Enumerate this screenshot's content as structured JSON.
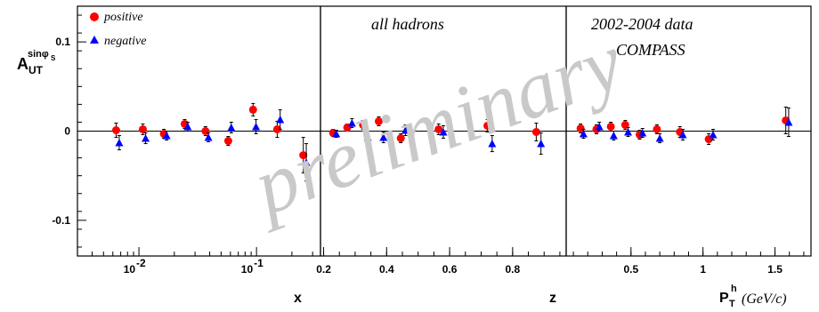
{
  "chart_data": {
    "type": "scatter",
    "y_axis": {
      "label_main": "A",
      "label_sub": "UT",
      "label_sup": "sinφ",
      "label_sup_sub": "S",
      "ylim": [
        -0.14,
        0.14
      ],
      "ticks": [
        -0.1,
        0,
        0.1
      ],
      "tick_labels": [
        "-0.1",
        "0",
        "0.1"
      ]
    },
    "legend": {
      "placement": "top-left",
      "entries": [
        {
          "name": "positive",
          "color": "#ff0000",
          "marker": "circle"
        },
        {
          "name": "negative",
          "color": "#0000ff",
          "marker": "triangle"
        }
      ]
    },
    "annotations": {
      "panel2": "all hadrons",
      "panel3_line1": "2002-2004 data",
      "panel3_line2": "COMPASS",
      "watermark": "preliminary"
    },
    "panels": [
      {
        "xlabel": "x",
        "xscale": "log",
        "xlim": [
          0.003,
          0.35
        ],
        "ticks": [
          {
            "value": 0.01,
            "base": "10",
            "exp": "-2"
          },
          {
            "value": 0.1,
            "base": "10",
            "exp": "-1"
          }
        ],
        "series": [
          {
            "name": "positive",
            "points": [
              {
                "x": 0.0064,
                "y": 0.001,
                "err": 0.008
              },
              {
                "x": 0.0108,
                "y": 0.002,
                "err": 0.006
              },
              {
                "x": 0.0163,
                "y": -0.003,
                "err": 0.005
              },
              {
                "x": 0.0245,
                "y": 0.008,
                "err": 0.005
              },
              {
                "x": 0.0368,
                "y": 0.0,
                "err": 0.005
              },
              {
                "x": 0.0575,
                "y": -0.011,
                "err": 0.005
              },
              {
                "x": 0.0935,
                "y": 0.024,
                "err": 0.007
              },
              {
                "x": 0.15,
                "y": 0.002,
                "err": 0.009
              },
              {
                "x": 0.25,
                "y": -0.027,
                "err": 0.02
              }
            ]
          },
          {
            "name": "negative",
            "points": [
              {
                "x": 0.0068,
                "y": -0.013,
                "err": 0.008
              },
              {
                "x": 0.0114,
                "y": -0.008,
                "err": 0.006
              },
              {
                "x": 0.0172,
                "y": -0.005,
                "err": 0.005
              },
              {
                "x": 0.026,
                "y": 0.005,
                "err": 0.005
              },
              {
                "x": 0.039,
                "y": -0.007,
                "err": 0.005
              },
              {
                "x": 0.061,
                "y": 0.004,
                "err": 0.006
              },
              {
                "x": 0.099,
                "y": 0.005,
                "err": 0.008
              },
              {
                "x": 0.159,
                "y": 0.013,
                "err": 0.011
              },
              {
                "x": 0.265,
                "y": -0.035,
                "err": 0.021
              }
            ]
          }
        ]
      },
      {
        "xlabel": "z",
        "xscale": "linear",
        "xlim": [
          0.19,
          0.97
        ],
        "ticks": [
          {
            "value": 0.2,
            "label": "0.2"
          },
          {
            "value": 0.4,
            "label": "0.4"
          },
          {
            "value": 0.6,
            "label": "0.6"
          },
          {
            "value": 0.8,
            "label": "0.8"
          }
        ],
        "series": [
          {
            "name": "positive",
            "points": [
              {
                "x": 0.23,
                "y": -0.002,
                "err": 0.004
              },
              {
                "x": 0.275,
                "y": 0.004,
                "err": 0.004
              },
              {
                "x": 0.325,
                "y": 0.007,
                "err": 0.005
              },
              {
                "x": 0.375,
                "y": 0.011,
                "err": 0.005
              },
              {
                "x": 0.445,
                "y": -0.008,
                "err": 0.005
              },
              {
                "x": 0.565,
                "y": 0.002,
                "err": 0.006
              },
              {
                "x": 0.72,
                "y": 0.006,
                "err": 0.007
              },
              {
                "x": 0.875,
                "y": -0.001,
                "err": 0.01
              }
            ]
          },
          {
            "name": "negative",
            "points": [
              {
                "x": 0.24,
                "y": -0.003,
                "err": 0.004
              },
              {
                "x": 0.29,
                "y": 0.009,
                "err": 0.005
              },
              {
                "x": 0.34,
                "y": -0.007,
                "err": 0.005
              },
              {
                "x": 0.39,
                "y": -0.007,
                "err": 0.006
              },
              {
                "x": 0.46,
                "y": 0.001,
                "err": 0.006
              },
              {
                "x": 0.58,
                "y": -0.001,
                "err": 0.007
              },
              {
                "x": 0.735,
                "y": -0.014,
                "err": 0.009
              },
              {
                "x": 0.89,
                "y": -0.014,
                "err": 0.012
              }
            ]
          }
        ]
      },
      {
        "xlabel_main": "P",
        "xlabel_sub": "T",
        "xlabel_sup": "h",
        "xlabel_unit": "(GeV/c)",
        "xscale": "linear",
        "xlim": [
          0.05,
          1.75
        ],
        "ticks": [
          {
            "value": 0.5,
            "label": "0.5"
          },
          {
            "value": 1.0,
            "label": "1"
          },
          {
            "value": 1.5,
            "label": "1.5"
          }
        ],
        "series": [
          {
            "name": "positive",
            "points": [
              {
                "x": 0.15,
                "y": 0.003,
                "err": 0.005
              },
              {
                "x": 0.26,
                "y": 0.002,
                "err": 0.005
              },
              {
                "x": 0.36,
                "y": 0.005,
                "err": 0.005
              },
              {
                "x": 0.46,
                "y": 0.007,
                "err": 0.005
              },
              {
                "x": 0.56,
                "y": -0.004,
                "err": 0.005
              },
              {
                "x": 0.68,
                "y": 0.002,
                "err": 0.005
              },
              {
                "x": 0.84,
                "y": -0.001,
                "err": 0.006
              },
              {
                "x": 1.04,
                "y": -0.009,
                "err": 0.006
              },
              {
                "x": 1.575,
                "y": 0.012,
                "err": 0.015
              }
            ]
          },
          {
            "name": "negative",
            "points": [
              {
                "x": 0.17,
                "y": -0.003,
                "err": 0.005
              },
              {
                "x": 0.28,
                "y": 0.005,
                "err": 0.005
              },
              {
                "x": 0.38,
                "y": -0.005,
                "err": 0.005
              },
              {
                "x": 0.48,
                "y": -0.001,
                "err": 0.005
              },
              {
                "x": 0.58,
                "y": -0.002,
                "err": 0.005
              },
              {
                "x": 0.7,
                "y": -0.008,
                "err": 0.005
              },
              {
                "x": 0.86,
                "y": -0.004,
                "err": 0.006
              },
              {
                "x": 1.07,
                "y": -0.004,
                "err": 0.006
              },
              {
                "x": 1.595,
                "y": 0.01,
                "err": 0.016
              }
            ]
          }
        ]
      }
    ]
  }
}
